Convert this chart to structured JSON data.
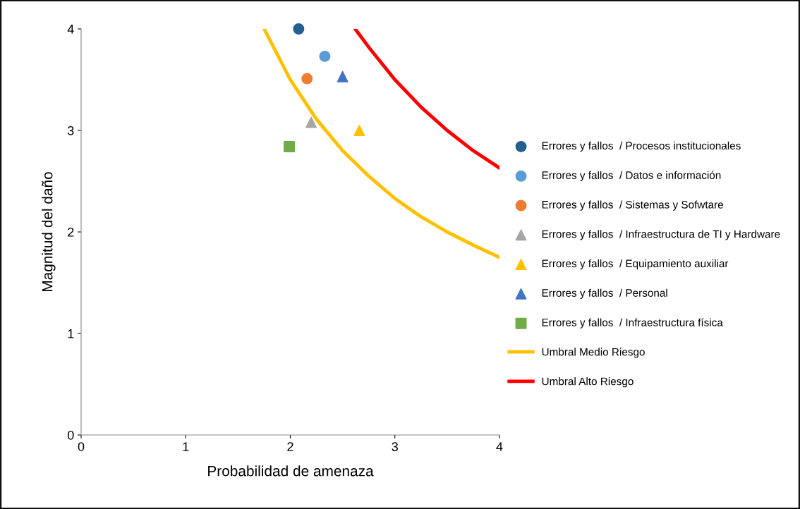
{
  "chart_data": {
    "type": "scatter",
    "xlabel": "Probabilidad de amenaza",
    "ylabel": "Magnitud del daño",
    "xlim": [
      0,
      4
    ],
    "ylim": [
      0,
      4
    ],
    "xticks": [
      0,
      1,
      2,
      3,
      4
    ],
    "yticks": [
      0,
      1,
      2,
      3,
      4
    ],
    "grid": false,
    "legend": "right",
    "series": [
      {
        "name": "Errores y fallos  / Procesos institucionales",
        "color": "#255e91",
        "marker": "circle",
        "x": [
          2.08
        ],
        "values": [
          4.0
        ]
      },
      {
        "name": "Errores y fallos  / Datos e información",
        "color": "#5b9bd5",
        "marker": "circle",
        "x": [
          2.33
        ],
        "values": [
          3.73
        ]
      },
      {
        "name": "Errores y fallos  / Sistemas y Sofwtare",
        "color": "#ed7d31",
        "marker": "circle",
        "x": [
          2.16
        ],
        "values": [
          3.51
        ]
      },
      {
        "name": "Errores y fallos  / Infraestructura de TI y Hardware",
        "color": "#a5a5a5",
        "marker": "triangle",
        "x": [
          2.2
        ],
        "values": [
          3.08
        ]
      },
      {
        "name": "Errores y fallos  / Equipamiento auxiliar",
        "color": "#ffc000",
        "marker": "triangle",
        "x": [
          2.66
        ],
        "values": [
          3.0
        ]
      },
      {
        "name": "Errores y fallos  / Personal",
        "color": "#4472c4",
        "marker": "triangle",
        "x": [
          2.5
        ],
        "values": [
          3.53
        ]
      },
      {
        "name": "Errores y fallos  / Infraestructura física",
        "color": "#70ad47",
        "marker": "square",
        "x": [
          1.99
        ],
        "values": [
          2.84
        ]
      },
      {
        "name": "Umbral Medio Riesgo",
        "type": "line",
        "color": "#ffc000",
        "marker": "none",
        "line_style": "solid",
        "x": [
          1.75,
          2,
          2.25,
          2.5,
          2.75,
          3,
          3.25,
          3.5,
          3.75,
          4
        ],
        "values": [
          4.0,
          3.5,
          3.11,
          2.8,
          2.55,
          2.33,
          2.15,
          2.0,
          1.87,
          1.75
        ]
      },
      {
        "name": "Umbral Alto Riesgo",
        "type": "line",
        "color": "#ff0000",
        "marker": "none",
        "line_style": "solid",
        "x": [
          2.62,
          2.75,
          3,
          3.25,
          3.5,
          3.75,
          4
        ],
        "values": [
          4.0,
          3.82,
          3.5,
          3.23,
          3.0,
          2.8,
          2.63
        ]
      }
    ]
  }
}
